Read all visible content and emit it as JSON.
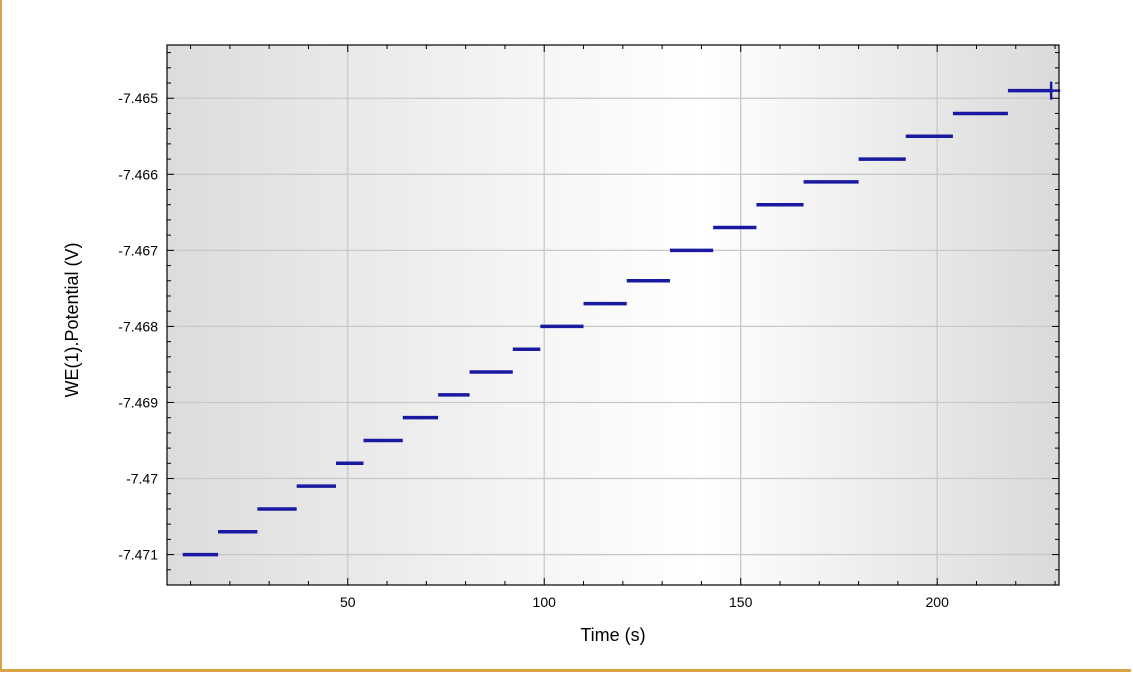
{
  "chart_data": {
    "type": "scatter",
    "title": "",
    "xlabel": "Time (s)",
    "ylabel": "WE(1).Potential (V)",
    "xlim": [
      4,
      231
    ],
    "ylim": [
      -7.4714,
      -7.4643
    ],
    "xticks": [
      50,
      100,
      150,
      200
    ],
    "yticks": [
      -7.471,
      -7.47,
      -7.469,
      -7.468,
      -7.467,
      -7.466,
      -7.465
    ],
    "ytick_labels": [
      "-7.471",
      "-7.47",
      "-7.469",
      "-7.468",
      "-7.467",
      "-7.466",
      "-7.465"
    ],
    "xtick_labels": [
      "50",
      "100",
      "150",
      "200"
    ],
    "grid": true,
    "marker_color": "#1a1aa0",
    "series": [
      {
        "points": [
          {
            "x_start": 8,
            "x_end": 17,
            "y": -7.471
          },
          {
            "x_start": 17,
            "x_end": 27,
            "y": -7.4707
          },
          {
            "x_start": 27,
            "x_end": 37,
            "y": -7.4704
          },
          {
            "x_start": 37,
            "x_end": 47,
            "y": -7.4701
          },
          {
            "x_start": 47,
            "x_end": 54,
            "y": -7.4698
          },
          {
            "x_start": 54,
            "x_end": 64,
            "y": -7.4695
          },
          {
            "x_start": 64,
            "x_end": 73,
            "y": -7.4692
          },
          {
            "x_start": 73,
            "x_end": 81,
            "y": -7.4689
          },
          {
            "x_start": 81,
            "x_end": 92,
            "y": -7.4686
          },
          {
            "x_start": 92,
            "x_end": 99,
            "y": -7.4683
          },
          {
            "x_start": 99,
            "x_end": 110,
            "y": -7.468
          },
          {
            "x_start": 110,
            "x_end": 121,
            "y": -7.4677
          },
          {
            "x_start": 121,
            "x_end": 132,
            "y": -7.4674
          },
          {
            "x_start": 132,
            "x_end": 143,
            "y": -7.467
          },
          {
            "x_start": 143,
            "x_end": 154,
            "y": -7.4667
          },
          {
            "x_start": 154,
            "x_end": 166,
            "y": -7.4664
          },
          {
            "x_start": 166,
            "x_end": 180,
            "y": -7.4661
          },
          {
            "x_start": 180,
            "x_end": 192,
            "y": -7.4658
          },
          {
            "x_start": 192,
            "x_end": 204,
            "y": -7.4655
          },
          {
            "x_start": 204,
            "x_end": 218,
            "y": -7.4652
          },
          {
            "x_start": 218,
            "x_end": 229,
            "y": -7.4649
          }
        ]
      }
    ],
    "last_point": {
      "x": 229,
      "y": -7.4649
    }
  }
}
